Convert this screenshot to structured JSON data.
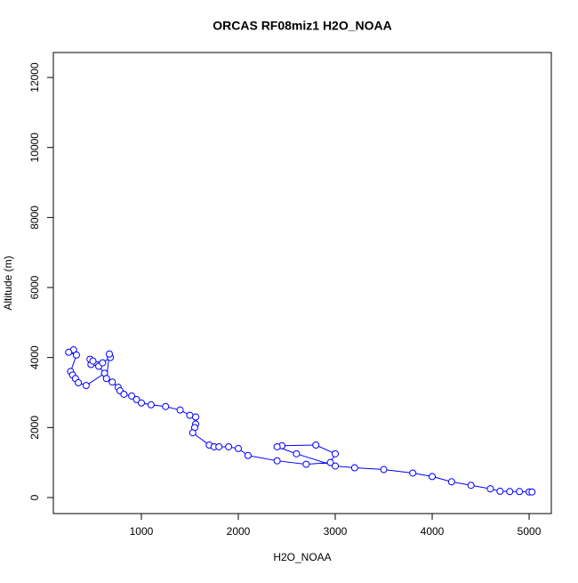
{
  "chart_data": {
    "type": "line",
    "title": "ORCAS RF08miz1 H2O_NOAA",
    "x_label": "H2O_NOAA",
    "y_label": "Altitude (m)",
    "color": "#0000ff",
    "markers": true,
    "x": [
      300,
      250,
      330,
      270,
      290,
      320,
      350,
      430,
      620,
      560,
      480,
      470,
      500,
      600,
      680,
      670,
      640,
      700,
      760,
      780,
      820,
      900,
      950,
      1000,
      1100,
      1250,
      1400,
      1500,
      1560,
      1560,
      1550,
      1530,
      1700,
      1750,
      1800,
      1900,
      2000,
      2100,
      2400,
      2700,
      2950,
      3000,
      2800,
      2450,
      2400,
      2600,
      3000,
      3200,
      3500,
      3800,
      4000,
      4200,
      4400,
      4600,
      4700,
      4800,
      4900,
      5000,
      5030
    ],
    "values": [
      4220,
      4150,
      4070,
      3600,
      3500,
      3400,
      3280,
      3200,
      3550,
      3750,
      3800,
      3950,
      3900,
      3850,
      4000,
      4100,
      3400,
      3300,
      3150,
      3050,
      2950,
      2900,
      2800,
      2700,
      2650,
      2600,
      2500,
      2350,
      2300,
      2100,
      2000,
      1850,
      1500,
      1450,
      1450,
      1450,
      1400,
      1200,
      1050,
      950,
      1000,
      1250,
      1500,
      1480,
      1450,
      1250,
      900,
      850,
      800,
      700,
      600,
      450,
      350,
      250,
      180,
      170,
      170,
      160,
      160
    ],
    "xlim": [
      92,
      5229
    ],
    "ylim": [
      -458,
      12713
    ],
    "xticks": [
      1000,
      2000,
      3000,
      4000,
      5000
    ],
    "yticks": [
      0,
      2000,
      4000,
      6000,
      8000,
      10000,
      12000
    ]
  }
}
